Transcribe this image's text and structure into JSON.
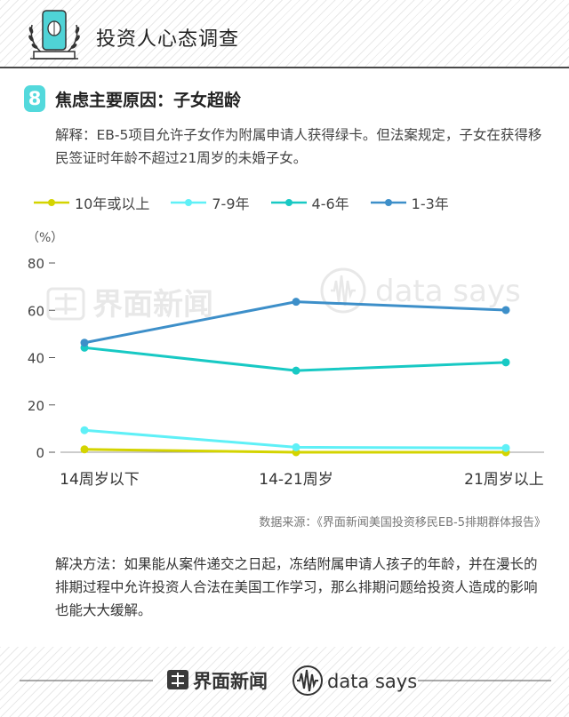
{
  "header": {
    "title": "投资人心态调查",
    "logo_icon": "tablet-laurel-icon"
  },
  "section": {
    "number": "8",
    "title": "焦虑主要原因：子女超龄",
    "explanation": "解释：EB-5项目允许子女作为附属申请人获得绿卡。但法案规定，子女在获得移民签证时年龄不超过21周岁的未婚子女。"
  },
  "chart_data": {
    "type": "line",
    "categories": [
      "14周岁以下",
      "14-21周岁",
      "21周岁以上"
    ],
    "ylabel": "（%）",
    "ylim": [
      0,
      80
    ],
    "yticks": [
      0,
      20,
      40,
      60,
      80
    ],
    "grid": false,
    "legend_position": "top",
    "series": [
      {
        "name": "10年或以上",
        "color": "#d4d400",
        "values": [
          1.2,
          0,
          0
        ]
      },
      {
        "name": "7-9年",
        "color": "#5ff0f7",
        "values": [
          9.3,
          2.1,
          1.8
        ]
      },
      {
        "name": "4-6年",
        "color": "#18c9c4",
        "values": [
          44.2,
          34.5,
          38.0
        ]
      },
      {
        "name": "1-3年",
        "color": "#3d8fc9",
        "values": [
          46.3,
          63.6,
          60.1
        ]
      }
    ]
  },
  "watermarks": {
    "left": "界面新闻",
    "right": "data says"
  },
  "source": "数据来源：《界面新闻美国投资移民EB-5排期群体报告》",
  "solution": "解决方法：如果能从案件递交之日起，冻结附属申请人孩子的年龄，并在漫长的排期过程中允许投资人合法在美国工作学习，那么排期问题给投资人造成的影响也能大大缓解。",
  "footer": {
    "brand_left": "界面新闻",
    "brand_right": "data says"
  }
}
